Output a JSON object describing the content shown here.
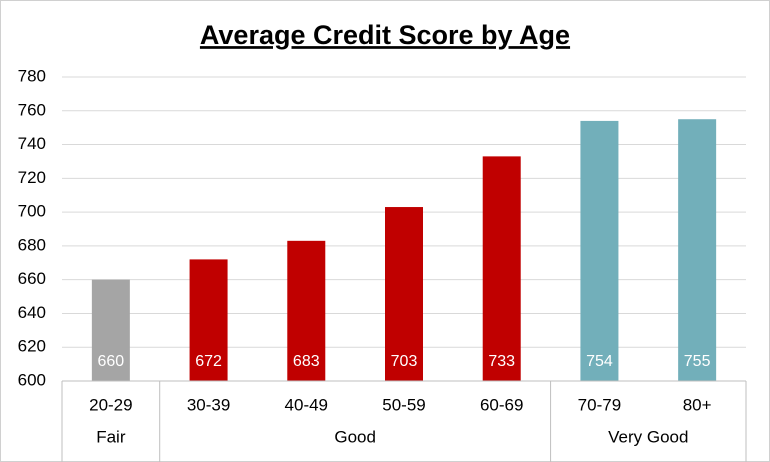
{
  "chart_data": {
    "type": "bar",
    "title": "Average Credit Score by Age",
    "categories": [
      "20-29",
      "30-39",
      "40-49",
      "50-59",
      "60-69",
      "70-79",
      "80+"
    ],
    "values": [
      660,
      672,
      683,
      703,
      733,
      754,
      755
    ],
    "colors": [
      "#a5a5a5",
      "#c00000",
      "#c00000",
      "#c00000",
      "#c00000",
      "#72afba",
      "#72afba"
    ],
    "groups": [
      {
        "name": "Fair",
        "span": 1
      },
      {
        "name": "Good",
        "span": 4
      },
      {
        "name": "Very Good",
        "span": 2
      }
    ],
    "ylim": [
      600,
      780
    ],
    "yticks": [
      600,
      620,
      640,
      660,
      680,
      700,
      720,
      740,
      760,
      780
    ],
    "grid": true
  }
}
